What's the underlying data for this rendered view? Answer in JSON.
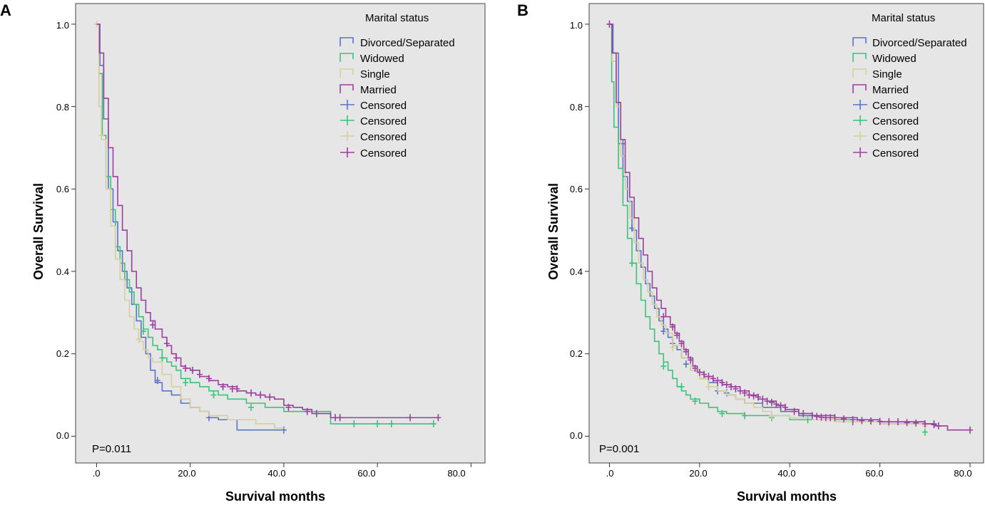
{
  "series_colors": {
    "Divorced/Separated": "#5b74c4",
    "Widowed": "#3cc27a",
    "Single": "#d6cf9c",
    "Married": "#9a3f9e"
  },
  "chart_data": [
    {
      "type": "line",
      "panel_label": "A",
      "xlabel": "Survival months",
      "ylabel": "Overall Survival",
      "xlim": [
        -4.5,
        83
      ],
      "ylim": [
        -0.065,
        1.05
      ],
      "x_ticks": [
        0,
        20,
        40,
        60,
        80
      ],
      "x_tick_labels": [
        ".0",
        "20.0",
        "40.0",
        "60.0",
        "80.0"
      ],
      "y_ticks": [
        0,
        0.2,
        0.4,
        0.6,
        0.8,
        1.0
      ],
      "y_tick_labels": [
        "0.0",
        "0.2",
        "0.4",
        "0.6",
        "0.8",
        "1.0"
      ],
      "annotation": "P=0.011",
      "legend": {
        "title": "Marital status",
        "entries": [
          "Divorced/Separated",
          "Widowed",
          "Single",
          "Married",
          "Censored",
          "Censored",
          "Censored",
          "Censored"
        ]
      },
      "series": [
        {
          "name": "Divorced/Separated",
          "x": [
            0,
            0.7,
            1.5,
            2.5,
            3.5,
            4.5,
            5.5,
            6.5,
            7.5,
            8.5,
            9.5,
            10.5,
            11.5,
            12.5,
            14,
            16,
            18,
            20,
            22,
            24,
            26,
            30,
            40
          ],
          "y": [
            1.0,
            0.9,
            0.77,
            0.6,
            0.52,
            0.45,
            0.4,
            0.36,
            0.32,
            0.28,
            0.24,
            0.2,
            0.16,
            0.13,
            0.11,
            0.1,
            0.08,
            0.07,
            0.06,
            0.045,
            0.04,
            0.015,
            0.015
          ],
          "censored": [
            [
              13,
              0.135
            ],
            [
              24,
              0.045
            ],
            [
              40,
              0.015
            ]
          ]
        },
        {
          "name": "Widowed",
          "x": [
            0,
            0.5,
            1.2,
            2,
            3,
            4,
            5,
            6,
            7,
            8,
            9,
            10,
            11,
            12,
            13,
            14,
            15,
            16,
            17,
            18,
            20,
            22,
            24,
            26,
            28,
            32,
            36,
            40,
            50,
            60,
            72
          ],
          "y": [
            1.0,
            0.88,
            0.73,
            0.63,
            0.55,
            0.46,
            0.42,
            0.38,
            0.35,
            0.32,
            0.29,
            0.26,
            0.24,
            0.22,
            0.21,
            0.19,
            0.18,
            0.17,
            0.16,
            0.14,
            0.13,
            0.12,
            0.11,
            0.1,
            0.09,
            0.08,
            0.07,
            0.06,
            0.03,
            0.03,
            0.03
          ],
          "censored": [
            [
              10,
              0.255
            ],
            [
              14,
              0.19
            ],
            [
              19,
              0.13
            ],
            [
              25,
              0.1
            ],
            [
              33,
              0.07
            ],
            [
              55,
              0.03
            ],
            [
              60,
              0.03
            ],
            [
              63,
              0.03
            ],
            [
              72,
              0.03
            ]
          ]
        },
        {
          "name": "Single",
          "x": [
            0,
            0.5,
            1,
            2,
            3,
            4,
            5,
            6,
            7,
            8,
            9,
            10,
            11,
            12,
            14,
            16,
            18,
            20,
            22,
            24,
            28,
            34,
            38,
            40
          ],
          "y": [
            1.0,
            0.8,
            0.72,
            0.6,
            0.51,
            0.43,
            0.38,
            0.33,
            0.29,
            0.26,
            0.23,
            0.21,
            0.19,
            0.18,
            0.15,
            0.12,
            0.09,
            0.07,
            0.06,
            0.05,
            0.04,
            0.03,
            0.02,
            0.02
          ],
          "censored": [
            [
              0,
              1.0
            ],
            [
              1,
              0.73
            ],
            [
              9,
              0.235
            ]
          ]
        },
        {
          "name": "Married",
          "x": [
            0,
            0.6,
            1.5,
            2.5,
            3.5,
            4.5,
            5.5,
            6.5,
            7.5,
            8.5,
            9.5,
            10.5,
            11.5,
            12.5,
            14,
            15,
            16,
            17,
            18,
            19,
            20,
            22,
            24,
            26,
            28,
            30,
            32,
            34,
            36,
            38,
            40,
            42,
            44,
            46,
            50,
            60,
            73
          ],
          "y": [
            1.0,
            0.93,
            0.82,
            0.7,
            0.63,
            0.56,
            0.5,
            0.45,
            0.4,
            0.36,
            0.33,
            0.3,
            0.28,
            0.26,
            0.24,
            0.22,
            0.2,
            0.19,
            0.17,
            0.165,
            0.16,
            0.145,
            0.135,
            0.125,
            0.12,
            0.11,
            0.105,
            0.1,
            0.095,
            0.09,
            0.075,
            0.07,
            0.065,
            0.055,
            0.045,
            0.045,
            0.045
          ],
          "censored": [
            [
              12,
              0.27
            ],
            [
              15,
              0.225
            ],
            [
              17,
              0.19
            ],
            [
              19,
              0.165
            ],
            [
              20.5,
              0.16
            ],
            [
              22,
              0.15
            ],
            [
              24,
              0.14
            ],
            [
              27,
              0.12
            ],
            [
              29,
              0.115
            ],
            [
              30,
              0.115
            ],
            [
              33,
              0.105
            ],
            [
              35,
              0.1
            ],
            [
              37,
              0.095
            ],
            [
              41,
              0.07
            ],
            [
              45,
              0.06
            ],
            [
              47,
              0.055
            ],
            [
              51,
              0.045
            ],
            [
              52,
              0.045
            ],
            [
              67,
              0.045
            ],
            [
              73,
              0.045
            ]
          ]
        }
      ]
    },
    {
      "type": "line",
      "panel_label": "B",
      "xlabel": "Survival months",
      "ylabel": "Overall Survival",
      "xlim": [
        -4.5,
        83
      ],
      "ylim": [
        -0.065,
        1.05
      ],
      "x_ticks": [
        0,
        20,
        40,
        60,
        80
      ],
      "x_tick_labels": [
        ".0",
        "20.0",
        "40.0",
        "60.0",
        "80.0"
      ],
      "y_ticks": [
        0,
        0.2,
        0.4,
        0.6,
        0.8,
        1.0
      ],
      "y_tick_labels": [
        "0.0",
        "0.2",
        "0.4",
        "0.6",
        "0.8",
        "1.0"
      ],
      "annotation": "P=0.001",
      "legend": {
        "title": "Marital status",
        "entries": [
          "Divorced/Separated",
          "Widowed",
          "Single",
          "Married",
          "Censored",
          "Censored",
          "Censored",
          "Censored"
        ]
      },
      "series": [
        {
          "name": "Divorced/Separated",
          "x": [
            0,
            0.8,
            2,
            3,
            4,
            5,
            6,
            7,
            8,
            9,
            10,
            11,
            12,
            13,
            14,
            15,
            16,
            18,
            20,
            22,
            24,
            26,
            28,
            30,
            34,
            38,
            42,
            46,
            50,
            55,
            60,
            72
          ],
          "y": [
            1.0,
            0.93,
            0.71,
            0.63,
            0.57,
            0.5,
            0.45,
            0.41,
            0.37,
            0.34,
            0.31,
            0.28,
            0.26,
            0.24,
            0.22,
            0.21,
            0.19,
            0.16,
            0.14,
            0.13,
            0.11,
            0.1,
            0.09,
            0.08,
            0.07,
            0.06,
            0.05,
            0.04,
            0.04,
            0.035,
            0.03,
            0.03
          ],
          "censored": [
            [
              3,
              0.71
            ],
            [
              5,
              0.505
            ],
            [
              12,
              0.255
            ],
            [
              14,
              0.225
            ],
            [
              17,
              0.175
            ],
            [
              24,
              0.11
            ],
            [
              26,
              0.105
            ],
            [
              54,
              0.035
            ],
            [
              72,
              0.03
            ]
          ]
        },
        {
          "name": "Widowed",
          "x": [
            0,
            0.5,
            1,
            2,
            3,
            4,
            5,
            6,
            7,
            8,
            9,
            10,
            11,
            12,
            13,
            14,
            15,
            16,
            17,
            18,
            20,
            22,
            24,
            26,
            30,
            40,
            50,
            60,
            70
          ],
          "y": [
            1.0,
            0.86,
            0.75,
            0.65,
            0.56,
            0.48,
            0.42,
            0.37,
            0.33,
            0.29,
            0.26,
            0.23,
            0.2,
            0.18,
            0.16,
            0.14,
            0.12,
            0.11,
            0.1,
            0.09,
            0.08,
            0.07,
            0.06,
            0.055,
            0.05,
            0.04,
            0.04,
            0.035,
            0.01
          ],
          "censored": [
            [
              5,
              0.42
            ],
            [
              12,
              0.17
            ],
            [
              16,
              0.12
            ],
            [
              19,
              0.085
            ],
            [
              25,
              0.055
            ],
            [
              30,
              0.05
            ],
            [
              36,
              0.045
            ],
            [
              44,
              0.04
            ],
            [
              70,
              0.01
            ]
          ]
        },
        {
          "name": "Single",
          "x": [
            0,
            0.6,
            1.5,
            2.5,
            3.5,
            4.5,
            5.5,
            6.5,
            7.5,
            8.5,
            9.5,
            10.5,
            11.5,
            12.5,
            14,
            16,
            18,
            20,
            22,
            24,
            26,
            28,
            30,
            32,
            34,
            36,
            40,
            45,
            50,
            60,
            70
          ],
          "y": [
            1.0,
            0.91,
            0.8,
            0.68,
            0.6,
            0.53,
            0.47,
            0.42,
            0.38,
            0.35,
            0.32,
            0.29,
            0.27,
            0.25,
            0.22,
            0.19,
            0.16,
            0.14,
            0.12,
            0.11,
            0.1,
            0.09,
            0.08,
            0.07,
            0.06,
            0.05,
            0.045,
            0.04,
            0.035,
            0.03,
            0.025
          ],
          "censored": [
            [
              14,
              0.215
            ],
            [
              22,
              0.12
            ],
            [
              36,
              0.05
            ],
            [
              62,
              0.03
            ],
            [
              70,
              0.025
            ]
          ]
        },
        {
          "name": "Married",
          "x": [
            0,
            0.6,
            1.5,
            2.5,
            3.5,
            4.5,
            5.5,
            6.5,
            7.5,
            8.5,
            9.5,
            10.5,
            11.5,
            12.5,
            13.5,
            14.5,
            15.5,
            16.5,
            17.5,
            18.5,
            19.5,
            21,
            23,
            25,
            27,
            29,
            31,
            33,
            35,
            37,
            39,
            42,
            45,
            50,
            55,
            60,
            65,
            70,
            72,
            75,
            80
          ],
          "y": [
            1.0,
            0.93,
            0.81,
            0.72,
            0.64,
            0.58,
            0.53,
            0.48,
            0.44,
            0.4,
            0.36,
            0.33,
            0.31,
            0.29,
            0.27,
            0.25,
            0.23,
            0.21,
            0.19,
            0.17,
            0.155,
            0.145,
            0.135,
            0.125,
            0.12,
            0.11,
            0.1,
            0.09,
            0.085,
            0.075,
            0.065,
            0.055,
            0.05,
            0.045,
            0.04,
            0.035,
            0.035,
            0.03,
            0.025,
            0.015,
            0.015
          ],
          "censored": [
            [
              0,
              1.0
            ],
            [
              12,
              0.29
            ],
            [
              14,
              0.265
            ],
            [
              15,
              0.245
            ],
            [
              16,
              0.225
            ],
            [
              17,
              0.205
            ],
            [
              18,
              0.185
            ],
            [
              19,
              0.165
            ],
            [
              20,
              0.155
            ],
            [
              21,
              0.15
            ],
            [
              22,
              0.145
            ],
            [
              23,
              0.14
            ],
            [
              24,
              0.135
            ],
            [
              25,
              0.13
            ],
            [
              26,
              0.125
            ],
            [
              27,
              0.12
            ],
            [
              28,
              0.115
            ],
            [
              29,
              0.11
            ],
            [
              30,
              0.105
            ],
            [
              31,
              0.1
            ],
            [
              32,
              0.098
            ],
            [
              33,
              0.095
            ],
            [
              34,
              0.09
            ],
            [
              35,
              0.085
            ],
            [
              36,
              0.082
            ],
            [
              37,
              0.078
            ],
            [
              38,
              0.074
            ],
            [
              39,
              0.07
            ],
            [
              41,
              0.06
            ],
            [
              43,
              0.055
            ],
            [
              45,
              0.05
            ],
            [
              46,
              0.048
            ],
            [
              47,
              0.046
            ],
            [
              48,
              0.045
            ],
            [
              49,
              0.045
            ],
            [
              50,
              0.045
            ],
            [
              52,
              0.042
            ],
            [
              54,
              0.04
            ],
            [
              56,
              0.038
            ],
            [
              58,
              0.037
            ],
            [
              60,
              0.036
            ],
            [
              62,
              0.035
            ],
            [
              64,
              0.035
            ],
            [
              66,
              0.033
            ],
            [
              68,
              0.032
            ],
            [
              70,
              0.03
            ],
            [
              72,
              0.028
            ],
            [
              73,
              0.025
            ],
            [
              80,
              0.015
            ]
          ]
        }
      ]
    }
  ]
}
